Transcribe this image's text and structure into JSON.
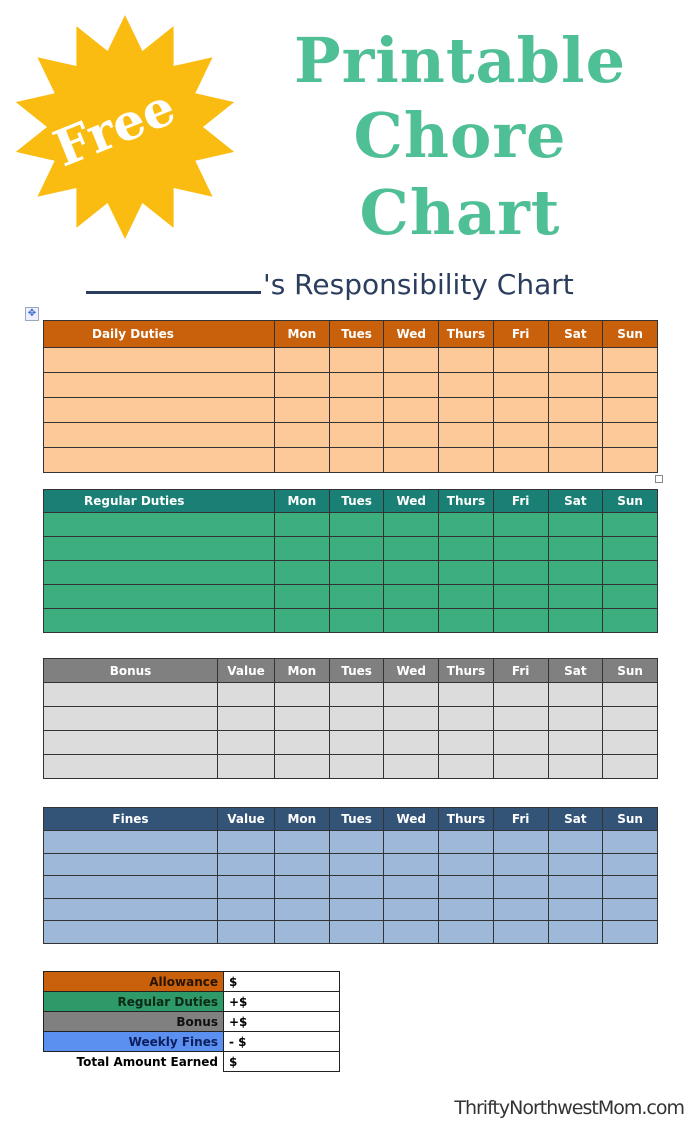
{
  "badge": {
    "text": "Free",
    "color": "#fbbc12"
  },
  "title": {
    "line1": "Printable",
    "line2": "Chore",
    "line3": "Chart",
    "color": "#4fbf95"
  },
  "subtitle": "'s  Responsibility Chart",
  "move_handle_icon": "move-arrows-icon",
  "days": [
    "Mon",
    "Tues",
    "Wed",
    "Thurs",
    "Fri",
    "Sat",
    "Sun"
  ],
  "tables": [
    {
      "title": "Daily Duties",
      "value_col": null,
      "rows": 5,
      "header_color": "#c8600c",
      "row_color": "#fdc998"
    },
    {
      "title": "Regular Duties",
      "value_col": null,
      "rows": 5,
      "header_color": "#1a7f74",
      "row_color": "#3daf7e"
    },
    {
      "title": "Bonus",
      "value_col": "Value",
      "rows": 4,
      "header_color": "#808080",
      "row_color": "#dcdcdc"
    },
    {
      "title": "Fines",
      "value_col": "Value",
      "rows": 5,
      "header_color": "#335477",
      "row_color": "#9db8d8"
    }
  ],
  "summary": [
    {
      "label": "Allowance",
      "value": " $",
      "color": "#c8600c",
      "text_color": "#2a1400"
    },
    {
      "label": "Regular Duties",
      "value": "+$",
      "color": "#2e9a6a",
      "text_color": "#0b2a18"
    },
    {
      "label": "Bonus",
      "value": "+$",
      "color": "#808080",
      "text_color": "#111"
    },
    {
      "label": "Weekly Fines",
      "value": "- $",
      "color": "#5b8ff0",
      "text_color": "#0d1f5c"
    },
    {
      "label": "Total Amount Earned",
      "value": " $",
      "color": "#ffffff",
      "text_color": "#000"
    }
  ],
  "footer": "ThriftyNorthwestMom.com"
}
